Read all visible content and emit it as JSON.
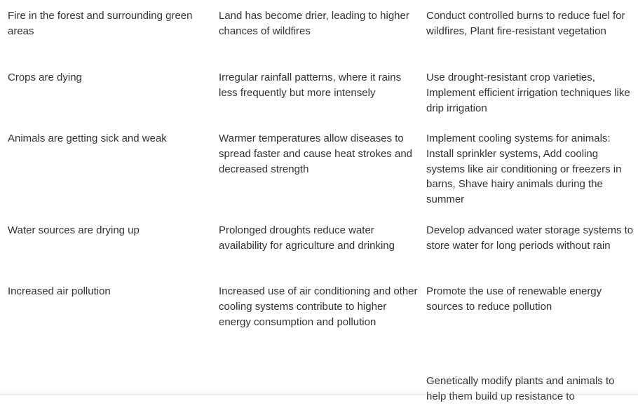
{
  "table": {
    "rows": [
      {
        "problem": "Fire in the forest and surrounding green areas",
        "cause": "Land has become drier, leading to higher chances of wildfires",
        "solution": "Conduct controlled burns to reduce fuel for wildfires, Plant fire-resistant vegetation"
      },
      {
        "problem": "Crops are dying",
        "cause": "Irregular rainfall patterns, where it rains less frequently but more intensely",
        "solution": "Use drought-resistant crop varieties, Implement efficient irrigation techniques like drip irrigation"
      },
      {
        "problem": "Animals are getting sick and weak",
        "cause": "Warmer temperatures allow diseases to spread faster and cause heat strokes and decreased strength",
        "solution": "Implement cooling systems for animals: Install sprinkler systems, Add cooling systems like air conditioning or freezers in barns, Shave hairy animals during the summer"
      },
      {
        "problem": "Water sources are drying up",
        "cause": "Prolonged droughts reduce water availability for agriculture and drinking",
        "solution": "Develop advanced water storage systems to store water for long periods without rain"
      },
      {
        "problem": "Increased air pollution",
        "cause": "Increased use of air conditioning and other cooling systems contribute to higher energy consumption and pollution",
        "solution": "Promote the use of renewable energy sources to reduce pollution"
      },
      {
        "problem": "",
        "cause": "",
        "solution": "Genetically modify plants and animals to help them build up resistance to"
      }
    ]
  }
}
